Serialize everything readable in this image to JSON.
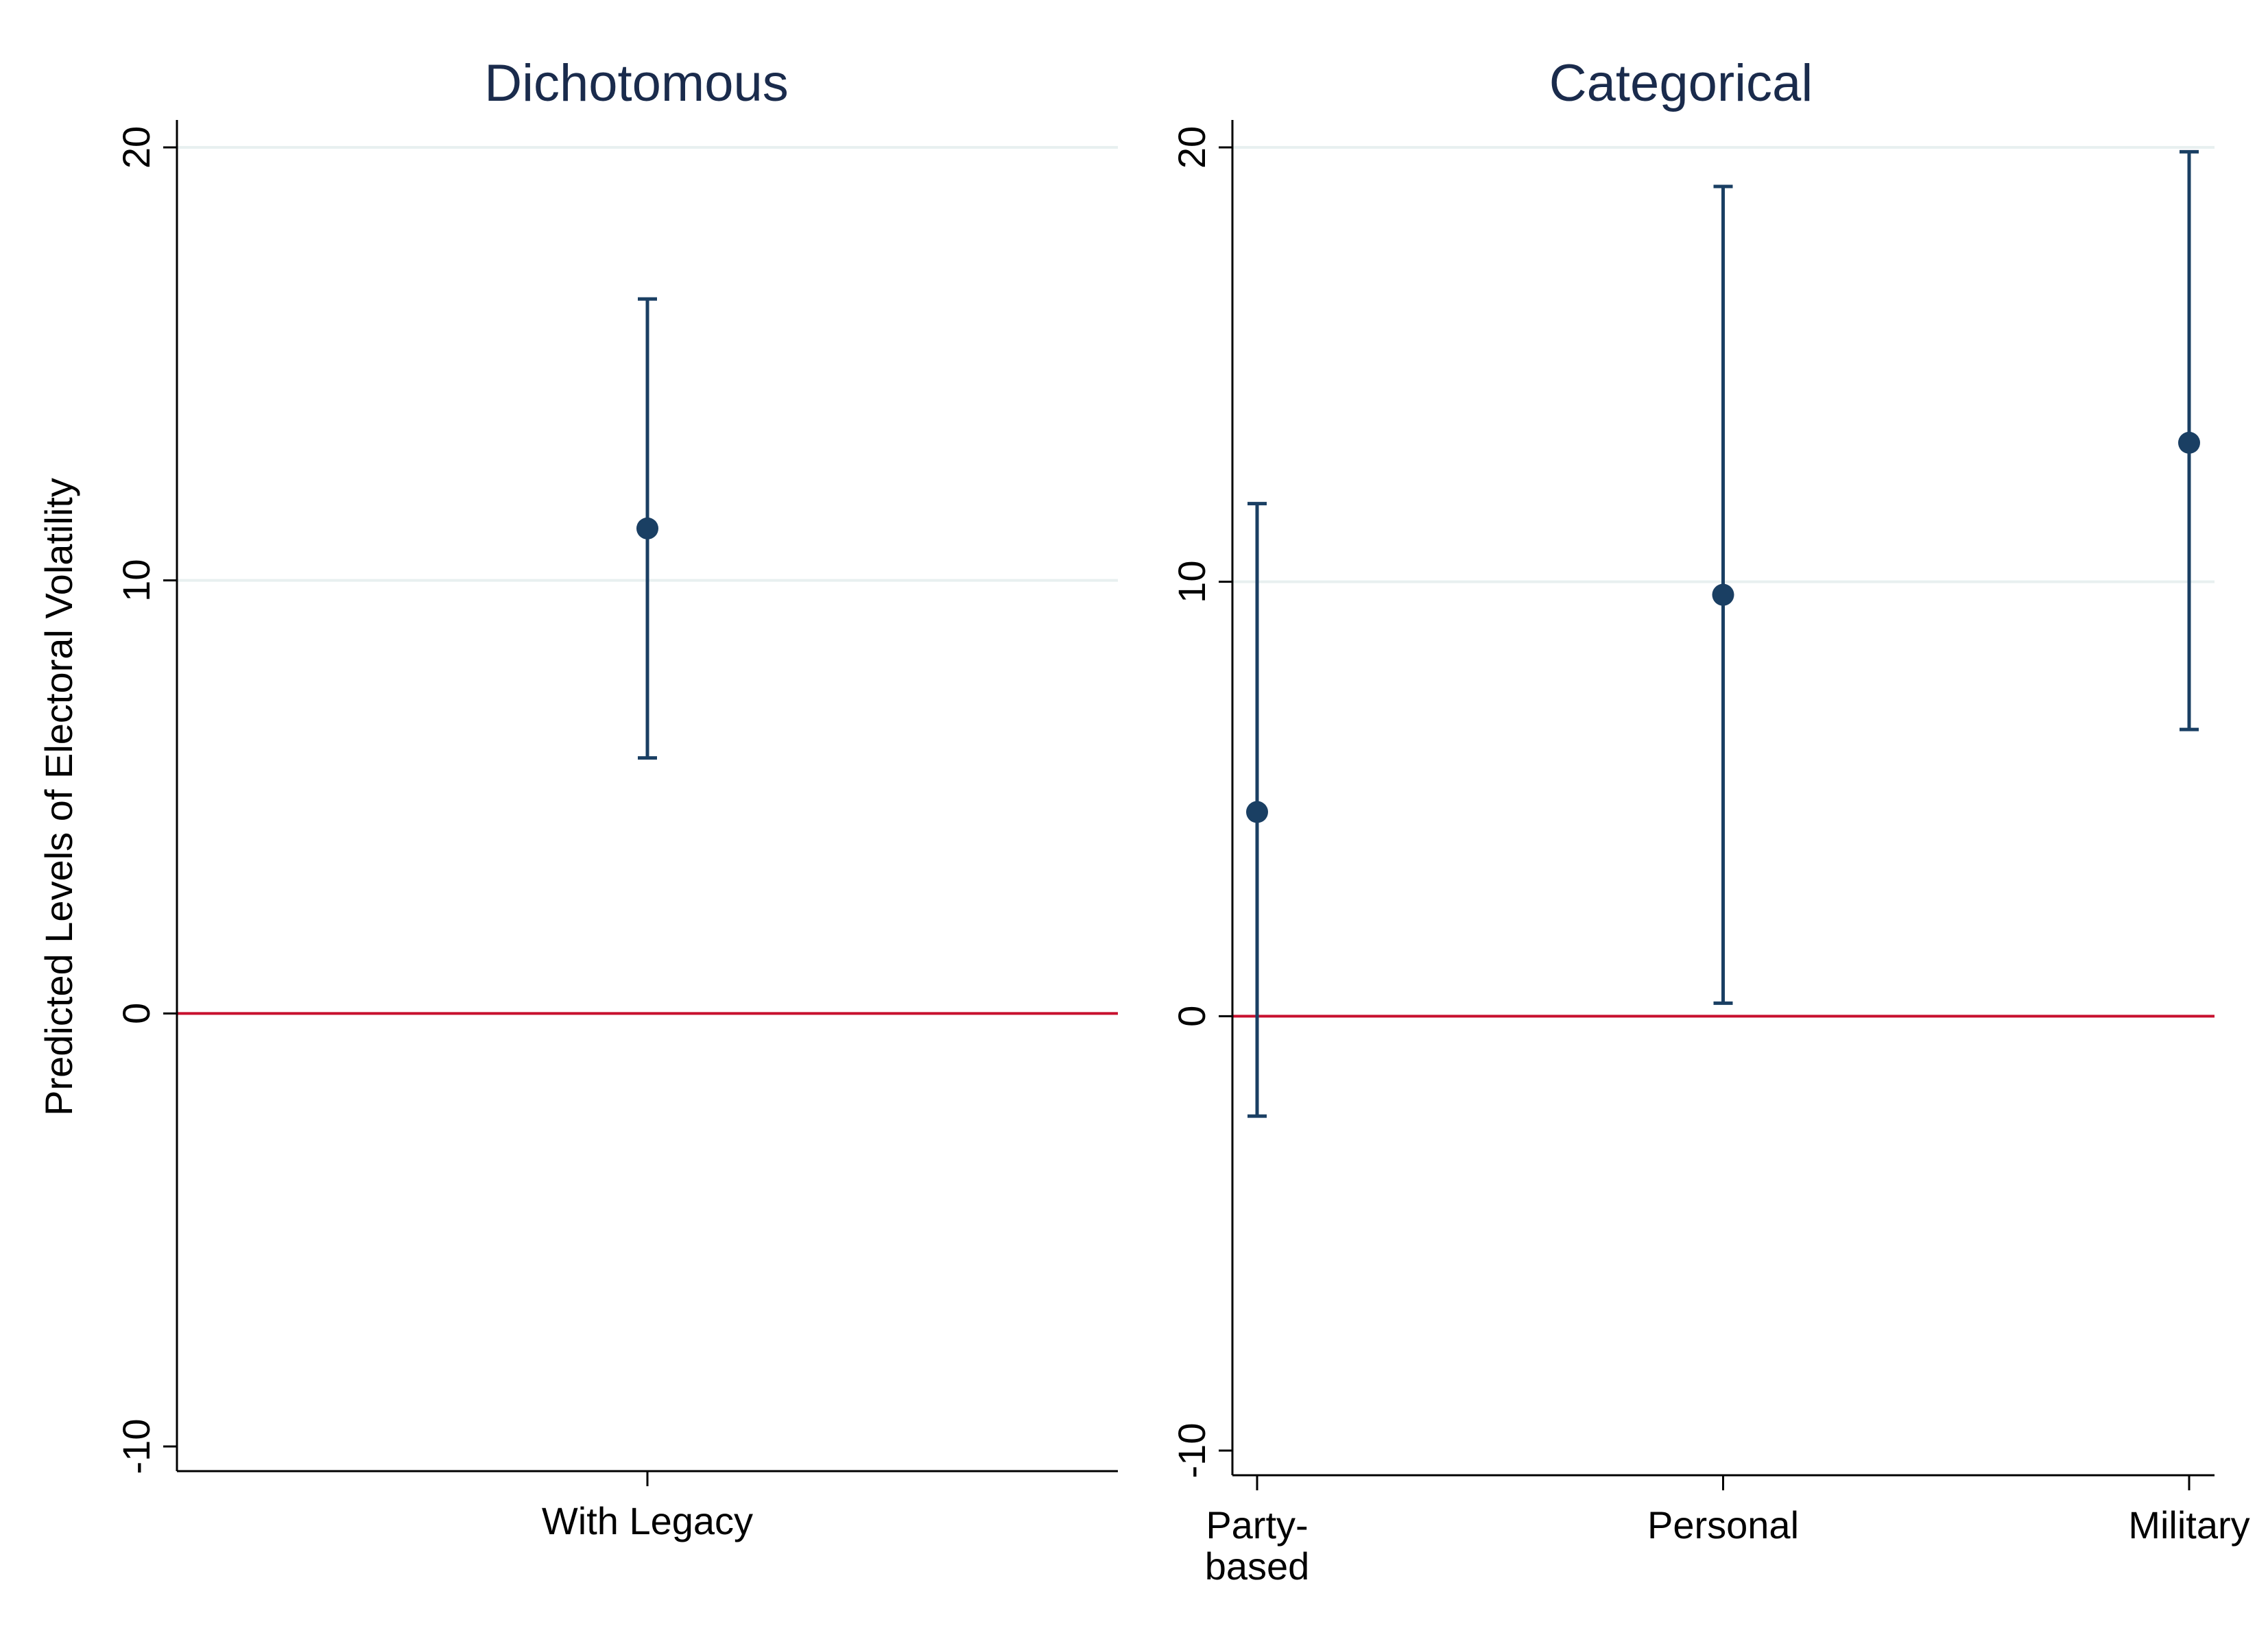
{
  "chart_data": [
    {
      "type": "scatter",
      "subtype": "point-estimate-with-confidence-interval",
      "title": "Dichotomous",
      "ylabel": "Predicted Levels of Electoral Volatility",
      "xlabel": "",
      "ylim": [
        -10,
        20
      ],
      "yticks": [
        "-10",
        "0",
        "10",
        "20"
      ],
      "grid": true,
      "reference_line": 0,
      "categories": [
        "With Legacy"
      ],
      "estimates": [
        11.2
      ],
      "ci_lower": [
        5.9
      ],
      "ci_upper": [
        16.5
      ]
    },
    {
      "type": "scatter",
      "subtype": "point-estimate-with-confidence-interval",
      "title": "Categorical",
      "ylabel": "",
      "xlabel": "",
      "ylim": [
        -10,
        20
      ],
      "yticks": [
        "-10",
        "0",
        "10",
        "20"
      ],
      "grid": true,
      "reference_line": 0,
      "categories": [
        "Party-\nbased",
        "Personal",
        "Military"
      ],
      "estimates": [
        4.7,
        9.7,
        13.2
      ],
      "ci_lower": [
        -2.3,
        0.3,
        6.6
      ],
      "ci_upper": [
        11.8,
        19.1,
        19.9
      ]
    }
  ],
  "colors": {
    "marker": "#1a3f63",
    "reference_line": "#c8102e",
    "grid": "#e8f0f0",
    "title": "#1a2b4c"
  }
}
